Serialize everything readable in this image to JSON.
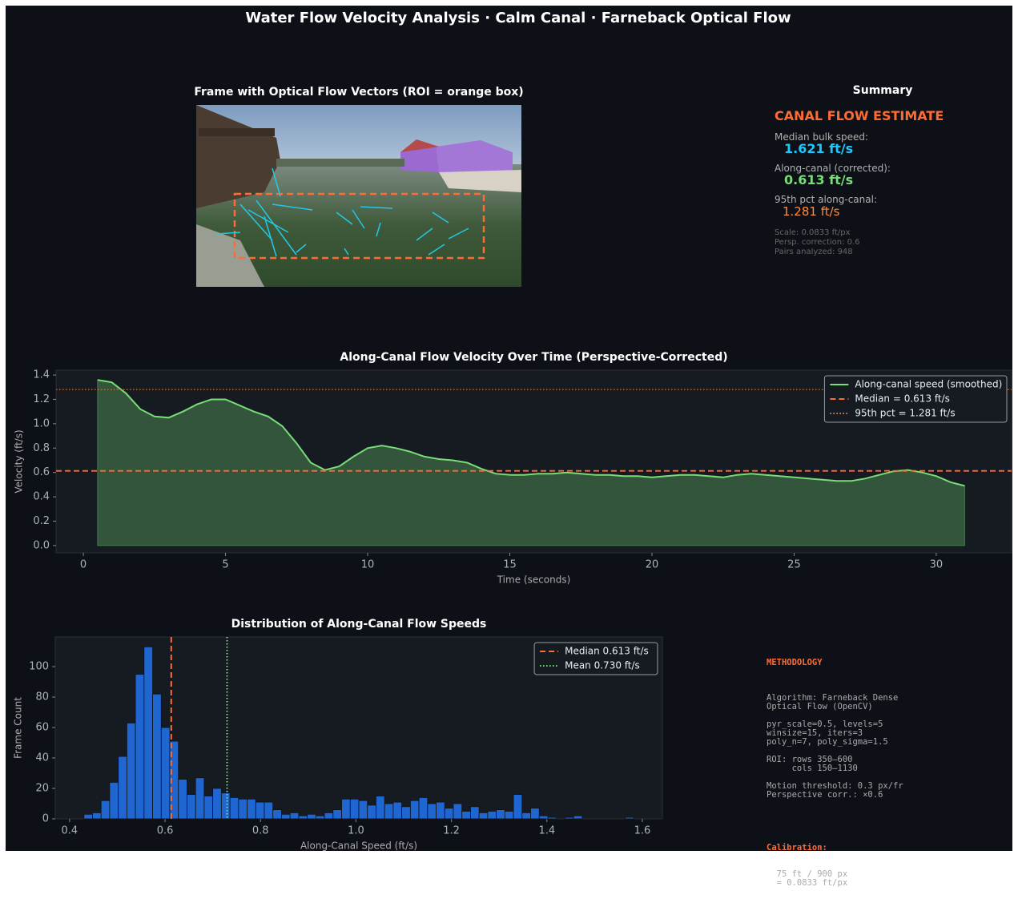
{
  "header": {
    "title": "Water Flow Velocity Analysis  ·  Calm Canal  ·  Farneback Optical Flow"
  },
  "image_panel": {
    "title": "Frame with Optical Flow Vectors (ROI = orange box)"
  },
  "summary": {
    "title": "Summary",
    "heading": "CANAL FLOW ESTIMATE",
    "items": [
      {
        "label": "Median bulk speed:",
        "value": "1.621 ft/s"
      },
      {
        "label": "Along-canal (corrected):",
        "value": "0.613 ft/s"
      },
      {
        "label": "95th pct along-canal:",
        "value": "1.281 ft/s"
      }
    ],
    "notes": [
      "Scale: 0.0833 ft/px",
      "Persp. correction: 0.6",
      "Pairs analyzed: 948"
    ]
  },
  "methodology": {
    "title": "METHODOLOGY",
    "blocks": [
      "Algorithm: Farneback Dense\nOptical Flow (OpenCV)",
      "pyr_scale=0.5, levels=5\nwinsize=15, iters=3\npoly_n=7, poly_sigma=1.5",
      "ROI: rows 350–600\n     cols 150–1130",
      "Motion threshold: 0.3 px/fr\nPerspective corr.: ×0.6"
    ],
    "calibration": {
      "heading": "Calibration:",
      "text": "  75 ft / 900 px\n  = 0.0833 ft/px"
    }
  },
  "chart_data": [
    {
      "type": "line",
      "title": "Along-Canal Flow Velocity Over Time (Perspective-Corrected)",
      "x_label": "Time (seconds)",
      "y_label": "Velocity (ft/s)",
      "x": [
        0.5,
        1,
        1.5,
        2,
        2.5,
        3,
        3.5,
        4,
        4.5,
        5,
        5.5,
        6,
        6.5,
        7,
        7.5,
        8,
        8.5,
        9,
        9.5,
        10,
        10.5,
        11,
        11.5,
        12,
        12.5,
        13,
        13.5,
        14,
        14.5,
        15,
        15.5,
        16,
        16.5,
        17,
        17.5,
        18,
        18.5,
        19,
        19.5,
        20,
        20.5,
        21,
        21.5,
        22,
        22.5,
        23,
        23.5,
        24,
        24.5,
        25,
        25.5,
        26,
        26.5,
        27,
        27.5,
        28,
        28.5,
        29,
        29.5,
        30,
        30.5,
        31
      ],
      "series": [
        {
          "name": "Along-canal speed (smoothed)",
          "color": "#77dd77",
          "fill": true,
          "values": [
            1.36,
            1.34,
            1.25,
            1.12,
            1.06,
            1.05,
            1.1,
            1.16,
            1.2,
            1.2,
            1.15,
            1.1,
            1.06,
            0.98,
            0.84,
            0.68,
            0.62,
            0.65,
            0.73,
            0.8,
            0.82,
            0.8,
            0.77,
            0.73,
            0.71,
            0.7,
            0.68,
            0.63,
            0.59,
            0.58,
            0.58,
            0.59,
            0.59,
            0.6,
            0.59,
            0.58,
            0.58,
            0.57,
            0.57,
            0.56,
            0.57,
            0.58,
            0.58,
            0.57,
            0.56,
            0.58,
            0.59,
            0.58,
            0.57,
            0.56,
            0.55,
            0.54,
            0.53,
            0.53,
            0.55,
            0.58,
            0.61,
            0.62,
            0.6,
            0.57,
            0.52,
            0.49
          ]
        }
      ],
      "hlines": [
        {
          "name": "Median = 0.613 ft/s",
          "value": 0.613,
          "color": "#ff6b35",
          "style": "dashed"
        },
        {
          "name": "95th pct = 1.281 ft/s",
          "value": 1.281,
          "color": "#e0823c",
          "style": "dotted"
        }
      ],
      "xlim": [
        -0.96,
        32.65
      ],
      "ylim": [
        -0.06,
        1.44
      ],
      "xticks": [
        0,
        5,
        10,
        15,
        20,
        25,
        30
      ],
      "yticks": [
        {
          "value": 0,
          "label": "0.0"
        },
        0.2,
        0.4,
        0.6,
        0.8,
        {
          "value": 1,
          "label": "1.0"
        },
        1.2,
        1.4
      ],
      "legend": "upper right"
    },
    {
      "type": "histogram",
      "title": "Distribution of Along-Canal Flow Speeds",
      "x_label": "Along-Canal Speed (ft/s)",
      "y_label": "Frame Count",
      "color": "#1f66d1",
      "bins": [
        0.43,
        0.448,
        0.466,
        0.484,
        0.502,
        0.52,
        0.538,
        0.556,
        0.574,
        0.592,
        0.61,
        0.628,
        0.646,
        0.664,
        0.682,
        0.7,
        0.718,
        0.736,
        0.754,
        0.772,
        0.79,
        0.808,
        0.826,
        0.844,
        0.862,
        0.88,
        0.898,
        0.916,
        0.934,
        0.952,
        0.97,
        0.988,
        1.006,
        1.024,
        1.042,
        1.06,
        1.078,
        1.096,
        1.114,
        1.132,
        1.15,
        1.168,
        1.186,
        1.204,
        1.222,
        1.24,
        1.258,
        1.276,
        1.294,
        1.312,
        1.33,
        1.348,
        1.366,
        1.384,
        1.402,
        1.42,
        1.438,
        1.456,
        1.474,
        1.492,
        1.51,
        1.528,
        1.546,
        1.564,
        1.582,
        1.6
      ],
      "counts": [
        3,
        4,
        12,
        24,
        41,
        63,
        95,
        113,
        82,
        60,
        51,
        26,
        16,
        27,
        15,
        20,
        17,
        14,
        13,
        13,
        11,
        11,
        6,
        3,
        4,
        2,
        3,
        2,
        4,
        6,
        13,
        13,
        12,
        9,
        15,
        10,
        11,
        8,
        12,
        14,
        10,
        11,
        7,
        10,
        5,
        8,
        4,
        5,
        6,
        5,
        16,
        4,
        7,
        2,
        1,
        0,
        1,
        2,
        0,
        0,
        0,
        0,
        0,
        1,
        0
      ],
      "vlines": [
        {
          "name": "Median 0.613 ft/s",
          "value": 0.613,
          "color": "#ff6b35",
          "style": "dashed"
        },
        {
          "name": "Mean 0.730 ft/s",
          "value": 0.73,
          "color": "#77dd77",
          "style": "dotted"
        }
      ],
      "xlim": [
        0.37,
        1.642
      ],
      "ylim": [
        0,
        119.5
      ],
      "xticks": [
        0.4,
        0.6,
        0.8,
        {
          "value": 1,
          "label": "1.0"
        },
        1.2,
        1.4,
        1.6
      ],
      "yticks": [
        0,
        20,
        40,
        60,
        80,
        100
      ],
      "legend": "upper right"
    }
  ]
}
